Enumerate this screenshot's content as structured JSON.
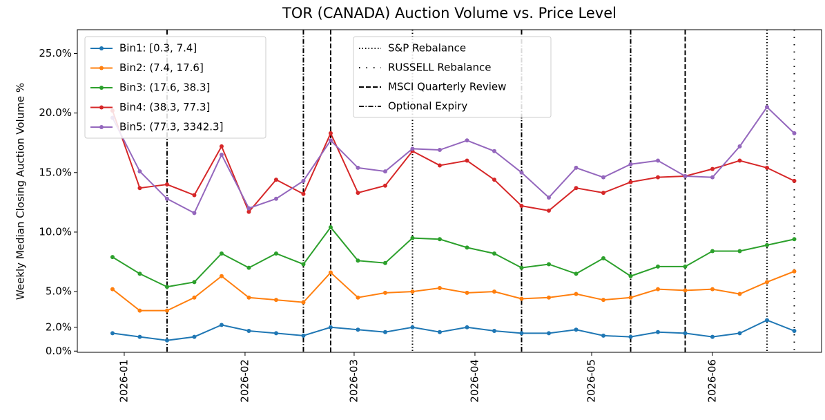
{
  "chart_data": {
    "type": "line",
    "title": "TOR (CANADA) Auction Volume vs. Price Level",
    "y_label": "Weekly Median Closing Auction Volume %",
    "xlim": [
      -1.29,
      26.0
    ],
    "xticks": [
      {
        "value": 0.43,
        "label": "2026-01"
      },
      {
        "value": 4.86,
        "label": "2026-02"
      },
      {
        "value": 8.86,
        "label": "2026-03"
      },
      {
        "value": 13.29,
        "label": "2026-04"
      },
      {
        "value": 17.57,
        "label": "2026-05"
      },
      {
        "value": 22.0,
        "label": "2026-06"
      }
    ],
    "ylim": [
      -0.1,
      27.0
    ],
    "yticks": [
      {
        "value": 0,
        "label": "0.0%"
      },
      {
        "value": 2,
        "label": "2.0%"
      },
      {
        "value": 5,
        "label": "5.0%"
      },
      {
        "value": 10,
        "label": "10.0%"
      },
      {
        "value": 15,
        "label": "15.0%"
      },
      {
        "value": 20,
        "label": "20.0%"
      },
      {
        "value": 25,
        "label": "25.0%"
      }
    ],
    "grid": false,
    "legend": "upper left",
    "series": [
      {
        "name": "Bin1: [0.3, 7.4]",
        "color": "#1f77b4",
        "values": [
          1.5,
          1.2,
          0.9,
          1.2,
          2.2,
          1.7,
          1.5,
          1.3,
          2.0,
          1.8,
          1.6,
          2.0,
          1.6,
          2.0,
          1.7,
          1.5,
          1.5,
          1.8,
          1.3,
          1.2,
          1.6,
          1.5,
          1.2,
          1.5,
          2.6,
          1.7
        ]
      },
      {
        "name": "Bin2: (7.4, 17.6]",
        "color": "#ff7f0e",
        "values": [
          5.2,
          3.4,
          3.4,
          4.5,
          6.3,
          4.5,
          4.3,
          4.1,
          6.6,
          4.5,
          4.9,
          5.0,
          5.3,
          4.9,
          5.0,
          4.4,
          4.5,
          4.8,
          4.3,
          4.5,
          5.2,
          5.1,
          5.2,
          4.8,
          5.8,
          6.7
        ]
      },
      {
        "name": "Bin3: (17.6, 38.3]",
        "color": "#2ca02c",
        "values": [
          7.9,
          6.5,
          5.4,
          5.8,
          8.2,
          7.0,
          8.2,
          7.3,
          10.4,
          7.6,
          7.4,
          9.5,
          9.4,
          8.7,
          8.2,
          7.0,
          7.3,
          6.5,
          7.8,
          6.3,
          7.1,
          7.1,
          8.4,
          8.4,
          8.9,
          9.4
        ]
      },
      {
        "name": "Bin4: (38.3, 77.3]",
        "color": "#d62728",
        "values": [
          20.2,
          13.7,
          14.0,
          13.1,
          17.2,
          11.7,
          14.4,
          13.2,
          18.3,
          13.3,
          13.9,
          16.8,
          15.6,
          16.0,
          14.4,
          12.2,
          11.8,
          13.7,
          13.3,
          14.2,
          14.6,
          14.7,
          15.3,
          16.0,
          15.4,
          14.3
        ]
      },
      {
        "name": "Bin5: (77.3, 3342.3]",
        "color": "#9467bd",
        "values": [
          19.6,
          15.1,
          12.8,
          11.6,
          16.5,
          12.0,
          12.8,
          14.3,
          17.7,
          15.4,
          15.1,
          17.0,
          16.9,
          17.7,
          16.8,
          15.0,
          12.9,
          15.4,
          14.6,
          15.7,
          16.0,
          14.7,
          14.6,
          17.2,
          20.5,
          18.3
        ]
      }
    ],
    "events_legend": "upper center",
    "events": [
      {
        "name": "S&P Rebalance",
        "style": "dotted",
        "color": "#000000",
        "x": [
          11,
          24
        ]
      },
      {
        "name": "RUSSELL Rebalance",
        "style": "loosely-dotted",
        "color": "#000000",
        "x": [
          25
        ]
      },
      {
        "name": "MSCI Quarterly Review",
        "style": "dashed",
        "color": "#000000",
        "x": [
          8,
          21
        ]
      },
      {
        "name": "Optional Expiry",
        "style": "dashdot",
        "color": "#000000",
        "x": [
          2,
          7,
          15,
          19
        ]
      }
    ]
  }
}
